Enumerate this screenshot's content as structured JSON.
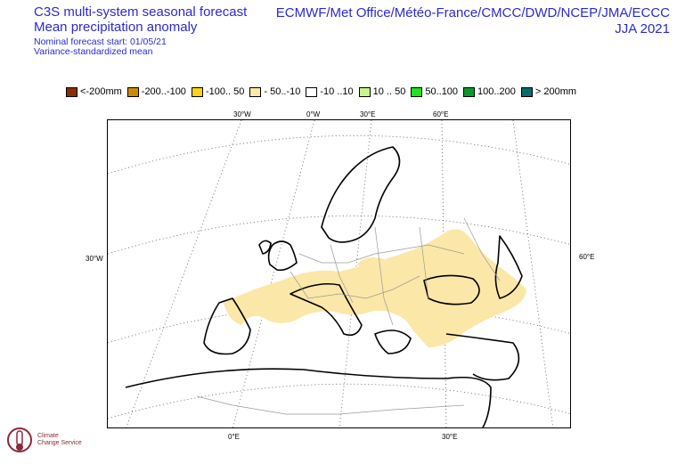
{
  "header": {
    "title_line1": "C3S multi-system seasonal forecast",
    "title_line2": "Mean precipitation anomaly",
    "nominal_start": "Nominal forecast start: 01/05/21",
    "variance_note": "Variance-standardized mean",
    "centres": "ECMWF/Met Office/Météo-France/CMCC/DWD/NCEP/JMA/ECCC",
    "season": "JJA 2021"
  },
  "legend": [
    {
      "label": "<-200mm",
      "color": "#8b2e00"
    },
    {
      "label": "-200..-100",
      "color": "#d08a00"
    },
    {
      "label": "-100.. 50",
      "color": "#ffd21a"
    },
    {
      "label": "- 50..-10",
      "color": "#fbe7a8"
    },
    {
      "label": "-10 ..10",
      "color": "#ffffff"
    },
    {
      "label": "10 .. 50",
      "color": "#c8f58a"
    },
    {
      "label": "50..100",
      "color": "#1be51b"
    },
    {
      "label": "100..200",
      "color": "#0a9a2a"
    },
    {
      "label": "> 200mm",
      "color": "#0b6b6b"
    }
  ],
  "axes": {
    "top": [
      "30°W",
      "0°W",
      "30°E",
      "60°E"
    ],
    "left": "30°W",
    "right": "60°E",
    "bottom": [
      "0°E",
      "30°E"
    ]
  },
  "logo": {
    "line1": "Climate",
    "line2": "Change Service"
  }
}
